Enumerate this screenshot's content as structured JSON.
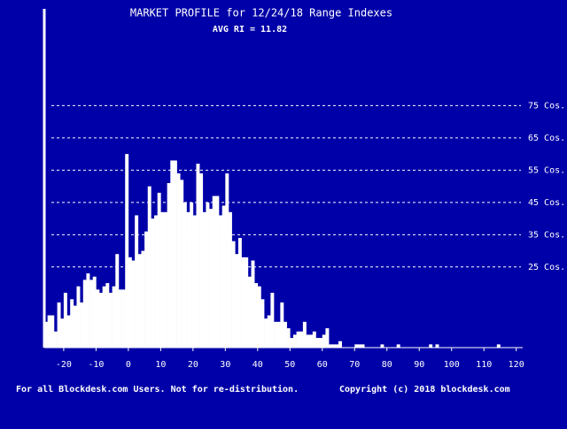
{
  "chart_data": {
    "type": "histogram",
    "title": "MARKET PROFILE for 12/24/18 Range Indexes",
    "subtitle": "AVG RI = 11.82",
    "notes": [
      "For all Blockdesk.com Users. Not for re-distribution.",
      "Copyright (c) 2018 blockdesk.com"
    ],
    "color": "#ffffff",
    "background": "#0000a8",
    "grid": true,
    "bins": [
      -26,
      -25,
      -24,
      -23,
      -22,
      -21,
      -20,
      -19,
      -18,
      -17,
      -16,
      -15,
      -14,
      -13,
      -12,
      -11,
      -10,
      -9,
      -8,
      -7,
      -6,
      -5,
      -4,
      -3,
      -2,
      -1,
      0,
      1,
      2,
      3,
      4,
      5,
      6,
      7,
      8,
      9,
      10,
      11,
      12,
      13,
      14,
      15,
      16,
      17,
      18,
      19,
      20,
      21,
      22,
      23,
      24,
      25,
      26,
      27,
      28,
      29,
      30,
      31,
      32,
      33,
      34,
      35,
      36,
      37,
      38,
      39,
      40,
      41,
      42,
      43,
      44,
      45,
      46,
      47,
      48,
      49,
      50,
      51,
      52,
      53,
      54,
      55,
      56,
      57,
      58,
      59,
      60,
      61,
      62,
      63,
      64,
      65,
      66,
      67,
      68,
      69,
      70,
      71,
      72,
      73,
      74,
      75,
      76,
      77,
      78,
      79,
      80,
      81,
      82,
      83,
      84,
      85,
      86,
      87,
      88,
      89,
      90,
      91,
      92,
      93,
      94,
      95,
      96,
      97,
      98,
      99,
      100,
      101,
      102,
      103,
      104,
      105,
      106,
      107,
      108,
      109,
      110,
      111,
      112,
      113,
      114,
      115,
      116,
      117,
      118,
      119,
      120,
      121,
      122
    ],
    "values": [
      8,
      10,
      10,
      5,
      14,
      9,
      17,
      10,
      15,
      13,
      19,
      14,
      21,
      23,
      21,
      22,
      18,
      17,
      19,
      20,
      17,
      19,
      29,
      18,
      18,
      60,
      28,
      27,
      41,
      29,
      30,
      36,
      50,
      40,
      41,
      48,
      42,
      42,
      51,
      58,
      58,
      54,
      52,
      45,
      42,
      45,
      41,
      57,
      54,
      42,
      45,
      43,
      47,
      47,
      41,
      44,
      54,
      42,
      33,
      29,
      34,
      28,
      28,
      22,
      27,
      20,
      19,
      15,
      9,
      10,
      17,
      8,
      8,
      14,
      8,
      6,
      3,
      4,
      5,
      5,
      8,
      4,
      4,
      5,
      3,
      3,
      4,
      6,
      1,
      1,
      1,
      2,
      0,
      0,
      0,
      0,
      1,
      1,
      1,
      0,
      0,
      0,
      0,
      0,
      1,
      0,
      0,
      0,
      0,
      1,
      0,
      0,
      0,
      0,
      0,
      0,
      0,
      0,
      0,
      1,
      0,
      1,
      0,
      0,
      0,
      0,
      0,
      0,
      0,
      0,
      0,
      0,
      0,
      0,
      0,
      0,
      0,
      0,
      0,
      0,
      1,
      0,
      0,
      0,
      0,
      0,
      0,
      0
    ],
    "xlim": [
      -26,
      122
    ],
    "xticks": [
      -20,
      -10,
      0,
      10,
      20,
      30,
      40,
      50,
      60,
      70,
      80,
      90,
      100,
      110,
      120
    ],
    "ylim": [
      0,
      105
    ],
    "yticks": [
      {
        "value": 25,
        "label": "25 Cos."
      },
      {
        "value": 35,
        "label": "35 Cos."
      },
      {
        "value": 45,
        "label": "45 Cos."
      },
      {
        "value": 55,
        "label": "55 Cos."
      },
      {
        "value": 65,
        "label": "65 Cos."
      },
      {
        "value": 75,
        "label": "75 Cos."
      }
    ]
  }
}
